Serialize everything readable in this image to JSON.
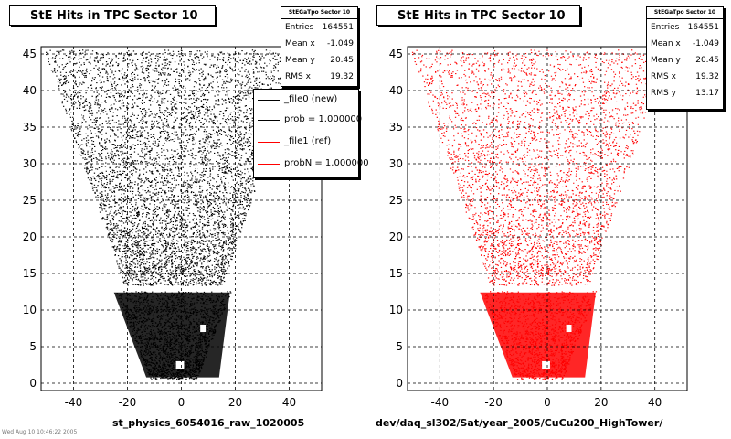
{
  "chart_data": [
    {
      "type": "scatter",
      "title": "StE Hits in TPC Sector 10",
      "xlabel": "st_physics_6054016_raw_1020005",
      "ylabel": "",
      "xlim": [
        -52,
        52
      ],
      "ylim": [
        -1,
        46
      ],
      "xticks": [
        "-40",
        "-20",
        "0",
        "20",
        "40"
      ],
      "yticks": [
        "0",
        "5",
        "10",
        "15",
        "20",
        "25",
        "30",
        "35",
        "40",
        "45"
      ],
      "grid": true,
      "color": "#000000",
      "stats": {
        "name": "StEGaTpo Sector 10",
        "rows": [
          {
            "label": "Entries",
            "value": "164551"
          },
          {
            "label": "Mean x",
            "value": "-1.049"
          },
          {
            "label": "Mean y",
            "value": "20.45"
          },
          {
            "label": "RMS x",
            "value": "19.32"
          }
        ]
      },
      "legend": [
        {
          "label": "_file0 (new)",
          "color": "#000000"
        },
        {
          "label": "prob = 1.000000",
          "color": "#000000"
        },
        {
          "label": "_file1 (ref)",
          "color": "#ff0000"
        },
        {
          "label": "probN = 1.000000",
          "color": "#ff0000"
        }
      ]
    },
    {
      "type": "scatter",
      "title": "StE Hits in TPC Sector 10",
      "xlabel": "dev/daq_sl302/Sat/year_2005/CuCu200_HighTower/",
      "ylabel": "",
      "xlim": [
        -52,
        52
      ],
      "ylim": [
        -1,
        46
      ],
      "xticks": [
        "-40",
        "-20",
        "0",
        "20",
        "40"
      ],
      "yticks": [
        "0",
        "5",
        "10",
        "15",
        "20",
        "25",
        "30",
        "35",
        "40",
        "45"
      ],
      "grid": true,
      "color": "#ff0000",
      "stats": {
        "name": "StEGaTpo Sector 10",
        "rows": [
          {
            "label": "Entries",
            "value": "164551"
          },
          {
            "label": "Mean x",
            "value": "-1.049"
          },
          {
            "label": "Mean y",
            "value": "20.45"
          },
          {
            "label": "RMS x",
            "value": "19.32"
          },
          {
            "label": "RMS y",
            "value": "13.17"
          }
        ]
      }
    }
  ],
  "corner_note": "Wed Aug 10 10:46:22 2005"
}
